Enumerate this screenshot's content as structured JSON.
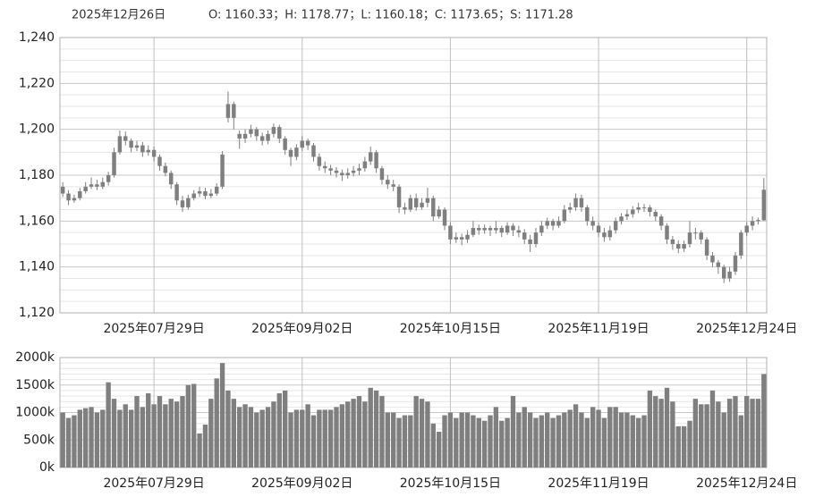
{
  "header": {
    "date": "2025年12月26日",
    "ohlc": "O: 1160.33；H: 1178.77；L: 1160.18；C: 1173.65；S: 1171.28"
  },
  "chart_data": [
    {
      "type": "candlestick",
      "color": "#7f7f7f",
      "grid": true,
      "categories": [
        null,
        null,
        null,
        null,
        null,
        null,
        null,
        null,
        null,
        null,
        null,
        null,
        null,
        null,
        null,
        null,
        "2025年07月29日",
        null,
        null,
        null,
        null,
        null,
        null,
        null,
        null,
        null,
        null,
        null,
        null,
        null,
        null,
        null,
        null,
        null,
        null,
        null,
        null,
        null,
        null,
        null,
        null,
        null,
        "2025年09月02日",
        null,
        null,
        null,
        null,
        null,
        null,
        null,
        null,
        null,
        null,
        null,
        null,
        null,
        null,
        null,
        null,
        null,
        null,
        null,
        null,
        null,
        null,
        null,
        null,
        null,
        "2025年10月15日",
        null,
        null,
        null,
        null,
        null,
        null,
        null,
        null,
        null,
        null,
        null,
        null,
        null,
        null,
        null,
        null,
        null,
        null,
        null,
        null,
        null,
        null,
        null,
        null,
        null,
        "2025年11月19日",
        null,
        null,
        null,
        null,
        null,
        null,
        null,
        null,
        null,
        null,
        null,
        null,
        null,
        null,
        null,
        null,
        null,
        null,
        null,
        null,
        null,
        null,
        null,
        null,
        null,
        "2025年12月24日",
        null,
        null,
        null
      ],
      "open": [
        1175,
        1172,
        1169,
        1170,
        1173,
        1175,
        1176,
        1175,
        1177,
        1180,
        1190,
        1197,
        1195,
        1192,
        1193,
        1190,
        1191,
        1188,
        1184,
        1181,
        1176,
        1169,
        1166,
        1170,
        1172,
        1173,
        1171,
        1172,
        1175,
        1205,
        1211,
        1198,
        1196,
        1198,
        1200,
        1197,
        1195,
        1198,
        1201,
        1196,
        1191,
        1188,
        1192,
        1195,
        1193,
        1188,
        1184,
        1183,
        1182,
        1181,
        1180,
        1181,
        1182,
        1183,
        1186,
        1190,
        1183,
        1178,
        1176,
        1175,
        1166,
        1165,
        1170,
        1166,
        1168,
        1170,
        1162,
        1165,
        1158,
        1152,
        1153,
        1152,
        1154,
        1157,
        1156,
        1157,
        1156,
        1157,
        1155,
        1158,
        1156,
        1155,
        1152,
        1150,
        1155,
        1158,
        1160,
        1158,
        1160,
        1165,
        1166,
        1170,
        1166,
        1160,
        1158,
        1155,
        1153,
        1156,
        1160,
        1162,
        1163,
        1165,
        1166,
        1166,
        1164,
        1162,
        1158,
        1152,
        1150,
        1148,
        1150,
        1155,
        1155,
        1152,
        1145,
        1142,
        1140,
        1135,
        1138,
        1145,
        1155,
        1158,
        1160,
        1160.33
      ],
      "high": [
        1177,
        1173.5,
        1171.5,
        1174.5,
        1177,
        1179,
        1178,
        1179,
        1181.5,
        1192,
        1199.5,
        1199,
        1196,
        1195,
        1194.5,
        1193,
        1192.5,
        1189,
        1185.5,
        1182,
        1177,
        1171,
        1171.5,
        1173.5,
        1175,
        1174.5,
        1174,
        1176.5,
        1190.5,
        1216.5,
        1212,
        1199.5,
        1200,
        1202,
        1201,
        1198.5,
        1199.5,
        1202.5,
        1202,
        1197,
        1192,
        1193.5,
        1197,
        1196,
        1194,
        1189.5,
        1186,
        1184.5,
        1183.5,
        1182.5,
        1183,
        1184,
        1185,
        1188,
        1192.5,
        1191,
        1184,
        1180,
        1178,
        1176,
        1168,
        1171.5,
        1172,
        1170,
        1174.5,
        1171,
        1166.5,
        1166,
        1159.5,
        1155,
        1154.5,
        1156,
        1160,
        1158.5,
        1158.5,
        1158,
        1160,
        1158,
        1159.5,
        1159,
        1158,
        1156.5,
        1154,
        1157,
        1160,
        1161.5,
        1161,
        1162,
        1167,
        1168,
        1172,
        1171.5,
        1167,
        1162,
        1159.5,
        1157,
        1158,
        1161.5,
        1163.5,
        1165,
        1166.5,
        1168,
        1167.5,
        1167,
        1165,
        1163,
        1159,
        1153.5,
        1151.5,
        1151.5,
        1160,
        1157,
        1156,
        1153,
        1146.5,
        1143,
        1141,
        1140,
        1146.5,
        1156,
        1159.5,
        1162,
        1161.5,
        1178.77
      ],
      "low": [
        1170.5,
        1167,
        1168,
        1169,
        1172,
        1174,
        1173.5,
        1174,
        1175.5,
        1179,
        1189,
        1193,
        1190,
        1190.5,
        1188,
        1188.5,
        1186,
        1182,
        1179.5,
        1174,
        1167,
        1164,
        1165,
        1169,
        1170.5,
        1169.5,
        1170,
        1171,
        1174,
        1203,
        1200,
        1191.5,
        1194,
        1196.5,
        1195,
        1193,
        1193.5,
        1196.5,
        1194,
        1189,
        1184,
        1186.5,
        1190.5,
        1191,
        1186,
        1182,
        1181,
        1180,
        1179,
        1177.5,
        1178.5,
        1179.5,
        1180,
        1181.5,
        1184.5,
        1181,
        1176,
        1174,
        1173,
        1163.5,
        1163,
        1164,
        1164.5,
        1165,
        1166,
        1160,
        1161,
        1156,
        1150,
        1150.5,
        1149.5,
        1150.5,
        1153,
        1154,
        1154.5,
        1153.5,
        1154.5,
        1153,
        1154,
        1153.5,
        1153,
        1150,
        1146.5,
        1148.5,
        1153.5,
        1156.5,
        1156,
        1157,
        1159,
        1163.5,
        1164.5,
        1164,
        1158,
        1156,
        1153,
        1151,
        1151.5,
        1154.5,
        1158.5,
        1160.5,
        1161.5,
        1163.5,
        1164,
        1162,
        1160,
        1156,
        1150,
        1147.5,
        1146,
        1146.5,
        1148.5,
        1152,
        1150,
        1143,
        1140,
        1137,
        1133,
        1133.5,
        1136.5,
        1143.5,
        1153.5,
        1156,
        1158.5,
        1160.18
      ],
      "close": [
        1172,
        1169,
        1170,
        1173,
        1175,
        1176,
        1175,
        1177,
        1180,
        1190,
        1197,
        1195,
        1192,
        1193,
        1190,
        1191,
        1188,
        1184,
        1181,
        1176,
        1169,
        1166,
        1170,
        1172,
        1173,
        1171,
        1172,
        1175,
        1189,
        1211,
        1205,
        1196,
        1198,
        1200,
        1197,
        1195,
        1198,
        1201,
        1196,
        1191,
        1188,
        1192,
        1195,
        1193,
        1188,
        1184,
        1183,
        1182,
        1181,
        1180,
        1181,
        1182,
        1183,
        1186,
        1190,
        1183,
        1178,
        1176,
        1175,
        1166,
        1165,
        1170,
        1166,
        1168,
        1170,
        1162,
        1165,
        1158,
        1152,
        1153,
        1152,
        1154,
        1157,
        1156,
        1157,
        1156,
        1157,
        1155,
        1158,
        1156,
        1155,
        1152,
        1150,
        1155,
        1158,
        1160,
        1158,
        1160,
        1165,
        1166,
        1170,
        1166,
        1160,
        1158,
        1155,
        1153,
        1156,
        1160,
        1162,
        1163,
        1165,
        1166,
        1166,
        1164,
        1162,
        1158,
        1152,
        1150,
        1148,
        1150,
        1155,
        1155,
        1152,
        1145,
        1142,
        1140,
        1135,
        1138,
        1145,
        1155,
        1158,
        1160,
        1160.5,
        1173.65
      ],
      "ylim": [
        1120,
        1240
      ],
      "yticks": [
        {
          "value": 1120,
          "label": "1,120"
        },
        {
          "value": 1140,
          "label": "1,140"
        },
        {
          "value": 1160,
          "label": "1,160"
        },
        {
          "value": 1180,
          "label": "1,180"
        },
        {
          "value": 1200,
          "label": "1,200"
        },
        {
          "value": 1220,
          "label": "1,220"
        },
        {
          "value": 1240,
          "label": "1,240"
        }
      ]
    },
    {
      "type": "bar",
      "color": "#7f7f7f",
      "grid": true,
      "categories": [
        null,
        null,
        null,
        null,
        null,
        null,
        null,
        null,
        null,
        null,
        null,
        null,
        null,
        null,
        null,
        null,
        "2025年07月29日",
        null,
        null,
        null,
        null,
        null,
        null,
        null,
        null,
        null,
        null,
        null,
        null,
        null,
        null,
        null,
        null,
        null,
        null,
        null,
        null,
        null,
        null,
        null,
        null,
        null,
        "2025年09月02日",
        null,
        null,
        null,
        null,
        null,
        null,
        null,
        null,
        null,
        null,
        null,
        null,
        null,
        null,
        null,
        null,
        null,
        null,
        null,
        null,
        null,
        null,
        null,
        null,
        null,
        "2025年10月15日",
        null,
        null,
        null,
        null,
        null,
        null,
        null,
        null,
        null,
        null,
        null,
        null,
        null,
        null,
        null,
        null,
        null,
        null,
        null,
        null,
        null,
        null,
        null,
        null,
        null,
        "2025年11月19日",
        null,
        null,
        null,
        null,
        null,
        null,
        null,
        null,
        null,
        null,
        null,
        null,
        null,
        null,
        null,
        null,
        null,
        null,
        null,
        null,
        null,
        null,
        null,
        null,
        null,
        "2025年12月24日",
        null,
        null,
        null
      ],
      "values": [
        1000000,
        900000,
        950000,
        1050000,
        1080000,
        1100000,
        1000000,
        1050000,
        1550000,
        1250000,
        1050000,
        1150000,
        1050000,
        1300000,
        1100000,
        1350000,
        1150000,
        1300000,
        1150000,
        1250000,
        1200000,
        1300000,
        1500000,
        1520000,
        620000,
        780000,
        1250000,
        1620000,
        1900000,
        1400000,
        1250000,
        1100000,
        1150000,
        1100000,
        1000000,
        1050000,
        1100000,
        1200000,
        1350000,
        1400000,
        1000000,
        1050000,
        1050000,
        1150000,
        950000,
        1050000,
        1050000,
        1050000,
        1100000,
        1150000,
        1200000,
        1250000,
        1300000,
        1200000,
        1450000,
        1400000,
        1300000,
        1000000,
        1000000,
        900000,
        950000,
        950000,
        1300000,
        1250000,
        1200000,
        800000,
        650000,
        950000,
        1000000,
        900000,
        1000000,
        1000000,
        950000,
        900000,
        850000,
        950000,
        1100000,
        850000,
        900000,
        1300000,
        1000000,
        1100000,
        1000000,
        900000,
        950000,
        1000000,
        900000,
        950000,
        1000000,
        1050000,
        1150000,
        1000000,
        900000,
        1100000,
        1050000,
        900000,
        1100000,
        1100000,
        1000000,
        1000000,
        950000,
        900000,
        950000,
        1400000,
        1300000,
        1250000,
        1450000,
        1200000,
        750000,
        750000,
        850000,
        1250000,
        1150000,
        1150000,
        1400000,
        1200000,
        1000000,
        1250000,
        1300000,
        950000,
        1300000,
        1250000,
        1250000,
        1700000
      ],
      "ylim": [
        0,
        2000000
      ],
      "yticks": [
        {
          "value": 0,
          "label": "0k"
        },
        {
          "value": 500000,
          "label": "500k"
        },
        {
          "value": 1000000,
          "label": "1000k"
        },
        {
          "value": 1500000,
          "label": "1500k"
        },
        {
          "value": 2000000,
          "label": "2000k"
        }
      ]
    }
  ]
}
